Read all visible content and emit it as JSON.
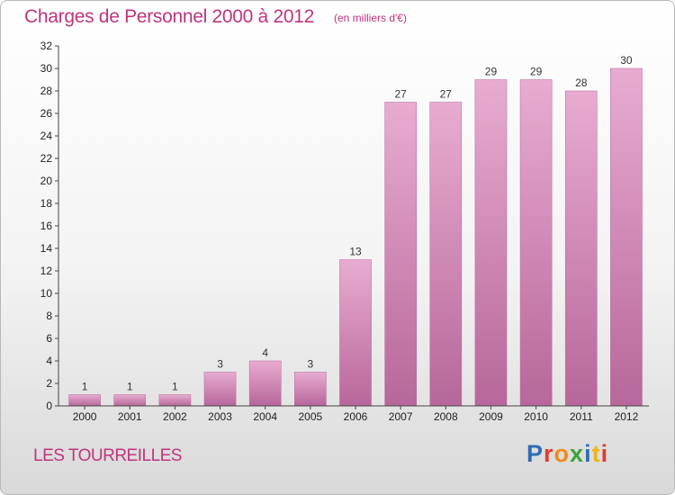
{
  "header": {
    "title": "Charges de Personnel 2000 à 2012",
    "subtitle": "(en milliers d'€)"
  },
  "footer": {
    "commune": "LES TOURREILLES",
    "logo_text": "Proxiti",
    "logo_colors": [
      "#2f6db5",
      "#e23b2a",
      "#f08a1c",
      "#3aa33a",
      "#2f6db5",
      "#f0b41c",
      "#e23b2a"
    ]
  },
  "colors": {
    "bar": "#d98fba",
    "bar_light": "#e8acd0",
    "bar_dark": "#b7679a",
    "text_accent": "#c0347e"
  },
  "chart_data": {
    "type": "bar",
    "title": "Charges de Personnel 2000 à 2012",
    "subtitle": "(en milliers d'€)",
    "xlabel": "",
    "ylabel": "",
    "categories": [
      "2000",
      "2001",
      "2002",
      "2003",
      "2004",
      "2005",
      "2006",
      "2007",
      "2008",
      "2009",
      "2010",
      "2011",
      "2012"
    ],
    "values": [
      1,
      1,
      1,
      3,
      4,
      3,
      13,
      27,
      27,
      29,
      29,
      28,
      30
    ],
    "ylim": [
      0,
      32
    ],
    "yticks": [
      0,
      2,
      4,
      6,
      8,
      10,
      12,
      14,
      16,
      18,
      20,
      22,
      24,
      26,
      28,
      30,
      32
    ],
    "grid": false,
    "legend": "none"
  }
}
